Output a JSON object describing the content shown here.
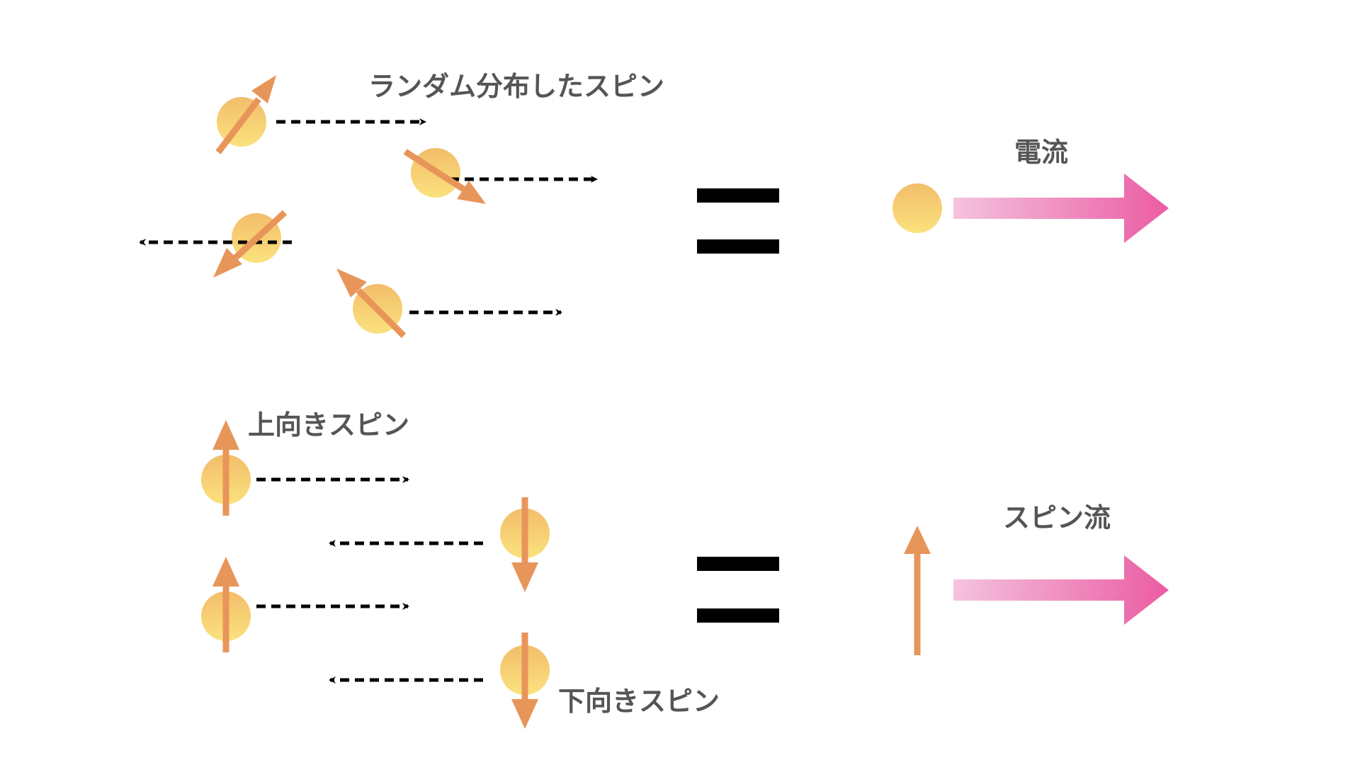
{
  "labels": {
    "random_spin": "ランダム分布したスピン",
    "current": "電流",
    "up_spin": "上向きスピン",
    "down_spin": "下向きスピン",
    "spin_current": "スピン流"
  },
  "colors": {
    "ball_light": "#fbe27e",
    "ball_dark": "#f2bd6a",
    "spin_arrow": "#e8955a",
    "motion_arrow": "#000000",
    "equals": "#000000",
    "flow_light": "#f4c3df",
    "flow_dark": "#eb5ca2",
    "text": "#555555"
  }
}
